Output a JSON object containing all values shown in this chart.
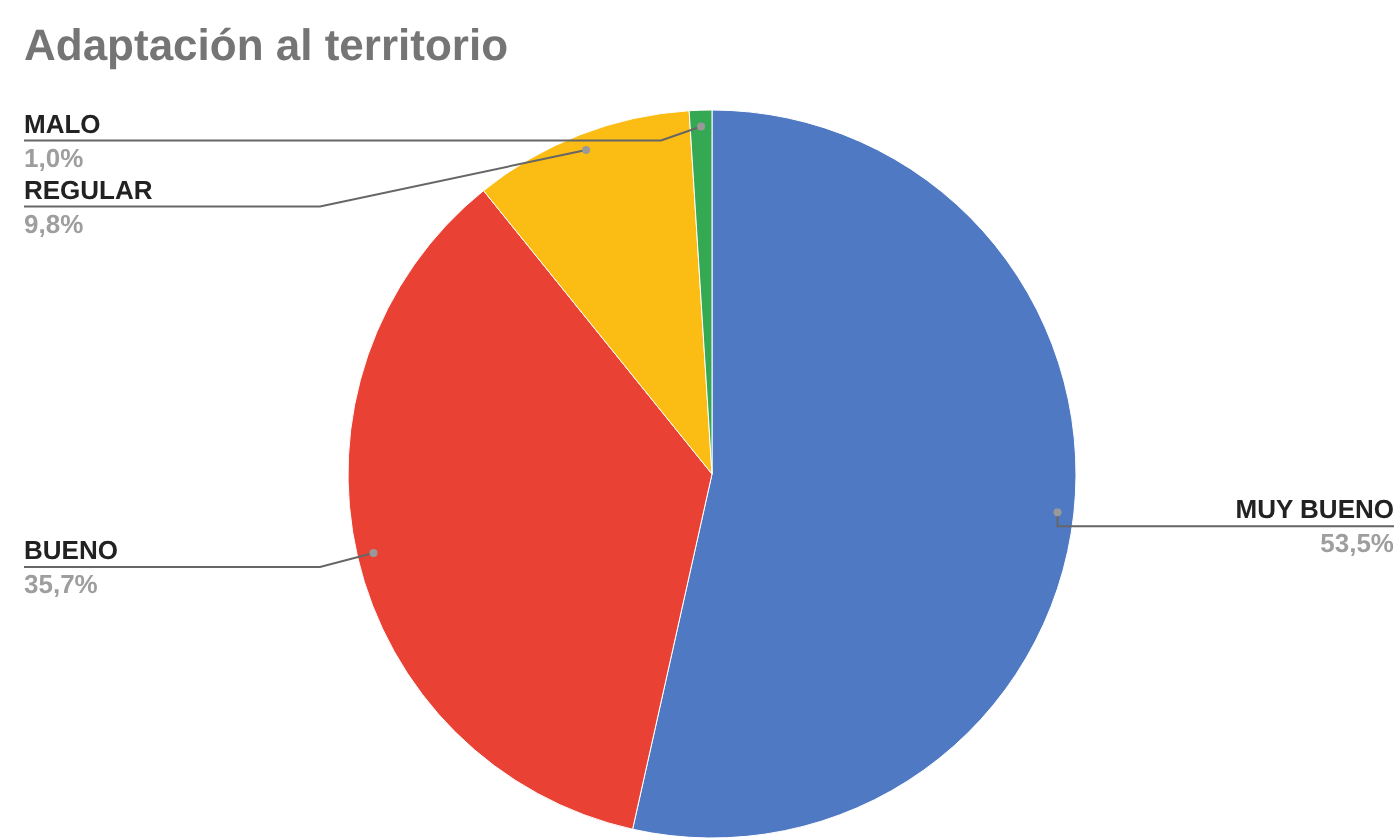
{
  "chart_data": {
    "type": "pie",
    "title": "Adaptación al territorio",
    "categories": [
      "MUY BUENO",
      "BUENO",
      "REGULAR",
      "MALO"
    ],
    "values": [
      53.5,
      35.7,
      9.8,
      1.0
    ],
    "value_labels": [
      "53,5%",
      "35,7%",
      "9,8%",
      "1,0%"
    ],
    "colors": [
      "#5079c3",
      "#e94235",
      "#fbbc14",
      "#34a853"
    ]
  }
}
